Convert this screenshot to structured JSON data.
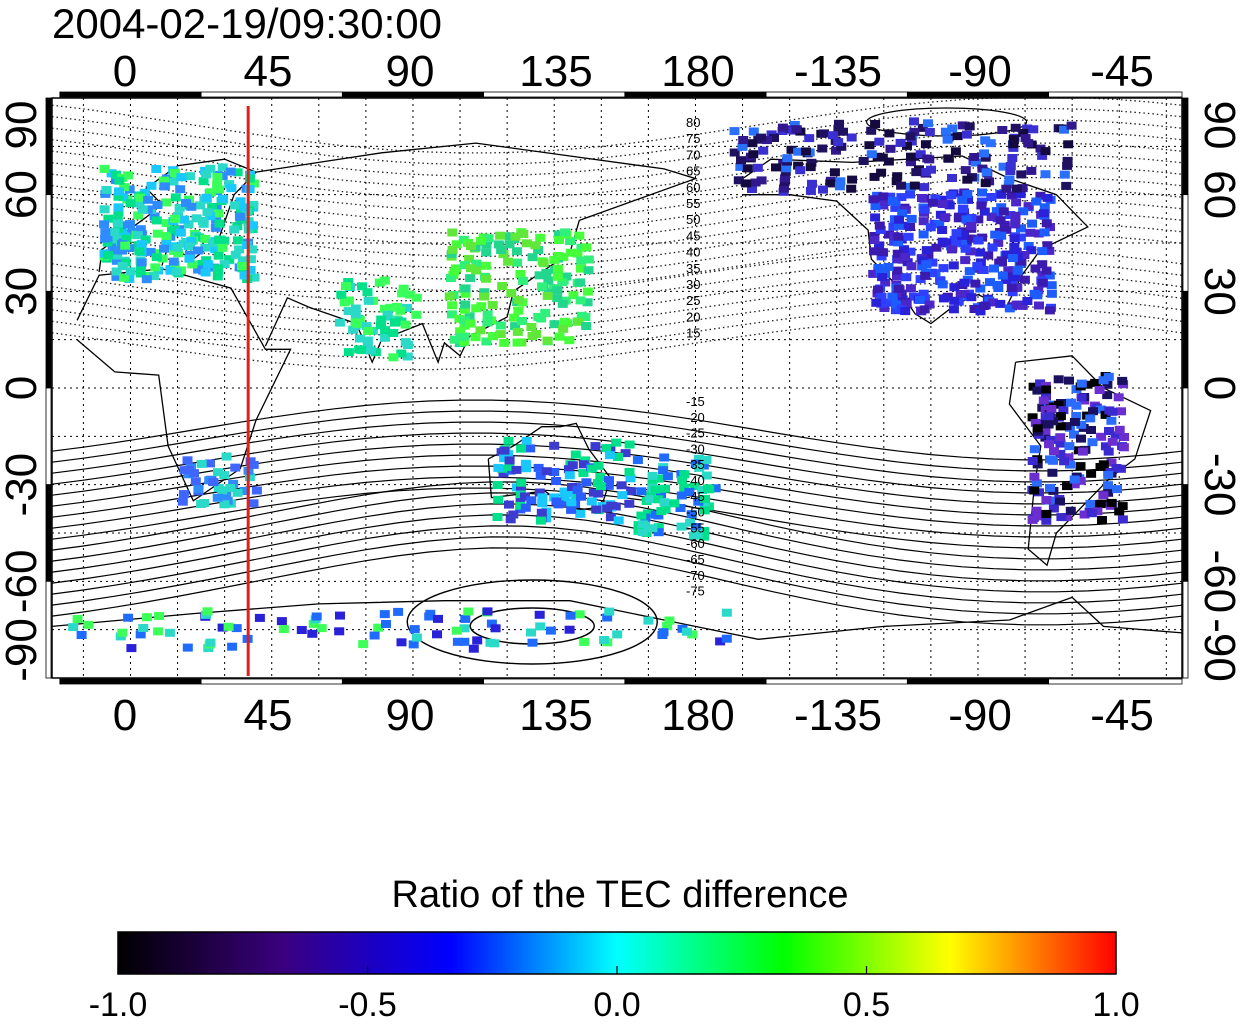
{
  "header": {
    "timestamp": "2004-02-19/09:30:00"
  },
  "map": {
    "x_ticks_top": [
      "0",
      "45",
      "90",
      "135",
      "180",
      "-135",
      "-90",
      "-45"
    ],
    "x_ticks_bottom": [
      "0",
      "45",
      "90",
      "135",
      "180",
      "-135",
      "-90",
      "-45"
    ],
    "y_ticks_left": [
      "90",
      "60",
      "30",
      "0",
      "-30",
      "-60",
      "-90"
    ],
    "y_ticks_right": [
      "90",
      "60",
      "30",
      "0",
      "-30",
      "-60",
      "-90"
    ],
    "contour_labels_north": [
      "80",
      "75",
      "70",
      "65",
      "60",
      "55",
      "50",
      "45",
      "40",
      "35",
      "30",
      "25",
      "20",
      "15"
    ],
    "contour_labels_south": [
      "-15",
      "-20",
      "-25",
      "-30",
      "-35",
      "-40",
      "-45",
      "-50",
      "-55",
      "-60",
      "-65",
      "-70",
      "-75"
    ],
    "meridian_line_longitude": 37.5,
    "meridian_line_color": "#e0201a"
  },
  "colorbar": {
    "title": "Ratio of the TEC difference",
    "ticks": [
      "-1.0",
      "-0.5",
      "0.0",
      "0.5",
      "1.0"
    ],
    "colors": [
      "#000000",
      "#3a0080",
      "#0000ff",
      "#00ffff",
      "#00ff00",
      "#ffff00",
      "#ff0000"
    ]
  }
}
